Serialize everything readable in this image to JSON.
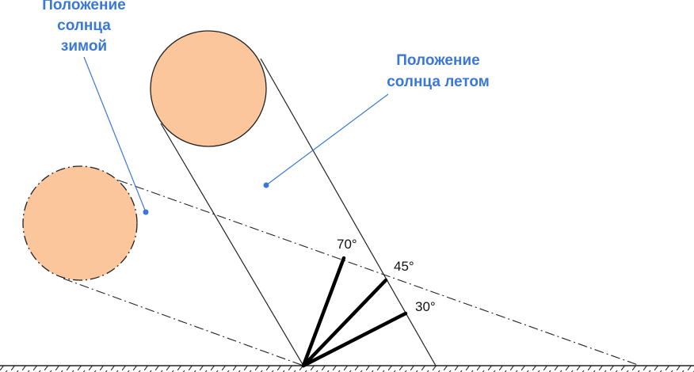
{
  "labels": {
    "winter_line1": "Положение",
    "winter_line2": "солнца",
    "winter_line3": "зимой",
    "summer_line1": "Положение",
    "summer_line2": "солнца летом"
  },
  "angles": {
    "a70": "70°",
    "a45": "45°",
    "a30": "30°"
  },
  "colors": {
    "sun_fill": "#FBC69B",
    "label_blue": "#3A78D8",
    "line": "#222222"
  }
}
